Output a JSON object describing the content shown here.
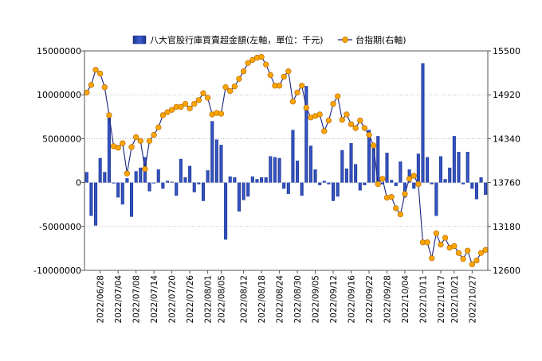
{
  "chart_data": {
    "type": "bar+line",
    "legend": {
      "placement": "top",
      "bar_label": "八大官股行庫買賣超金額(左軸，單位：千元)",
      "line_label": "台指期(右軸)"
    },
    "left_axis": {
      "min": -10000000,
      "max": 15000000,
      "step": 5000000,
      "ticks": [
        "15000000",
        "10000000",
        "5000000",
        "0",
        "-5000000",
        "-10000000"
      ]
    },
    "right_axis": {
      "min": 12600,
      "max": 15500,
      "step": 580,
      "ticks": [
        "15500",
        "14920",
        "14340",
        "13760",
        "13180",
        "12600"
      ]
    },
    "grid": "horizontal dotted",
    "x_tick_labels": [
      "2022/06/28",
      "2022/07/04",
      "2022/07/08",
      "2022/07/14",
      "2022/07/20",
      "2022/07/26",
      "2022/08/01",
      "2022/08/05",
      "2022/08/12",
      "2022/08/18",
      "2022/08/24",
      "2022/08/30",
      "2022/09/05",
      "2022/09/12",
      "2022/09/16",
      "2022/09/22",
      "2022/09/28",
      "2022/10/04",
      "2022/10/11",
      "2022/10/17",
      "2022/10/21",
      "2022/10/27"
    ],
    "x_tick_index": [
      3,
      7,
      11,
      15,
      19,
      23,
      27,
      30,
      35,
      39,
      43,
      47,
      51,
      55,
      59,
      63,
      67,
      71,
      75,
      79,
      82,
      86
    ],
    "bars": [
      1200000,
      -3800000,
      -4900000,
      2800000,
      1200000,
      7700000,
      -100000,
      -1700000,
      -2500000,
      500000,
      -3900000,
      1300000,
      1700000,
      2900000,
      -1000000,
      -100000,
      1500000,
      -700000,
      200000,
      100000,
      -1500000,
      2700000,
      600000,
      1900000,
      -1100000,
      -200000,
      -2100000,
      1400000,
      7000000,
      4900000,
      4300000,
      -6500000,
      700000,
      600000,
      -3300000,
      -2000000,
      -1600000,
      700000,
      400000,
      600000,
      600000,
      3000000,
      2900000,
      2800000,
      -700000,
      -1300000,
      6000000,
      2500000,
      -1500000,
      11000000,
      4200000,
      1500000,
      -300000,
      200000,
      -200000,
      -2100000,
      -1600000,
      3700000,
      1600000,
      4500000,
      2100000,
      -900000,
      -300000,
      6000000,
      4000000,
      5300000,
      -200000,
      3400000,
      300000,
      -400000,
      2400000,
      -1700000,
      1500000,
      -700000,
      3300000,
      13600000,
      2900000,
      -200000,
      -3800000,
      3000000,
      400000,
      1700000,
      5300000,
      3500000,
      -200000,
      3500000,
      -700000,
      -1900000,
      600000,
      -1400000
    ],
    "line": [
      14950,
      15050,
      15250,
      15200,
      15020,
      14650,
      14240,
      14220,
      14280,
      13880,
      14230,
      14360,
      14310,
      13940,
      14310,
      14390,
      14490,
      14650,
      14690,
      14720,
      14760,
      14760,
      14800,
      14740,
      14800,
      14850,
      14940,
      14880,
      14660,
      14680,
      14670,
      15020,
      14970,
      15030,
      15130,
      15230,
      15340,
      15380,
      15410,
      15420,
      15320,
      15180,
      15040,
      15040,
      15160,
      15230,
      14830,
      14950,
      15040,
      14750,
      14620,
      14640,
      14660,
      14440,
      14580,
      14800,
      14900,
      14590,
      14660,
      14530,
      14480,
      14580,
      14480,
      14390,
      14250,
      13740,
      13810,
      13560,
      13570,
      13420,
      13340,
      13610,
      13810,
      13850,
      13740,
      12970,
      12970,
      12760,
      13090,
      12940,
      13030,
      12900,
      12920,
      12830,
      12750,
      12860,
      12680,
      12730,
      12830,
      12870
    ]
  }
}
